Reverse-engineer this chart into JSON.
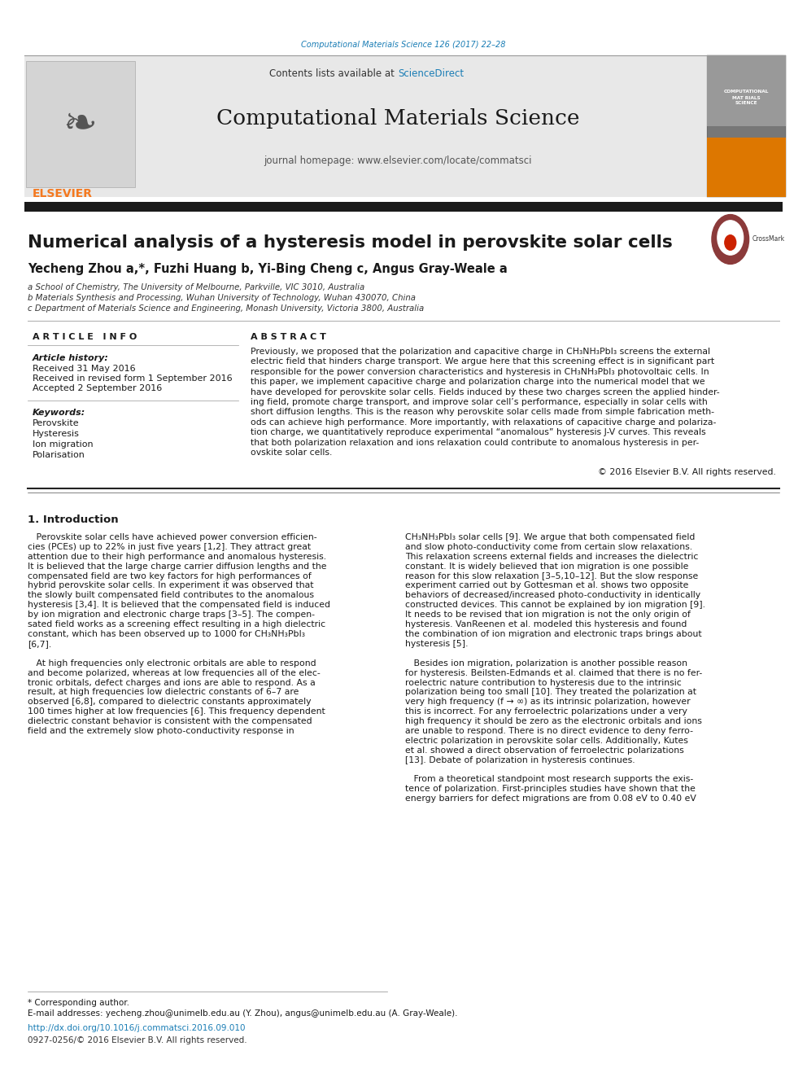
{
  "fig_width": 9.92,
  "fig_height": 13.23,
  "bg_color": "#ffffff",
  "top_url_text": "Computational Materials Science 126 (2017) 22–28",
  "top_url_color": "#1a7db5",
  "journal_name": "Computational Materials Science",
  "journal_homepage": "journal homepage: www.elsevier.com/locate/commatsci",
  "contents_text": "Contents lists available at",
  "sciencedirect_text": "ScienceDirect",
  "sciencedirect_color": "#1a7db5",
  "elsevier_color": "#f47920",
  "header_bg": "#e8e8e8",
  "paper_title": "Numerical analysis of a hysteresis model in perovskite solar cells",
  "authors": "Yecheng Zhou a,*, Fuzhi Huang b, Yi-Bing Cheng c, Angus Gray-Weale a",
  "affil_a": "a School of Chemistry, The University of Melbourne, Parkville, VIC 3010, Australia",
  "affil_b": "b Materials Synthesis and Processing, Wuhan University of Technology, Wuhan 430070, China",
  "affil_c": "c Department of Materials Science and Engineering, Monash University, Victoria 3800, Australia",
  "article_info_title": "A R T I C L E   I N F O",
  "article_history_label": "Article history:",
  "received": "Received 31 May 2016",
  "received_revised": "Received in revised form 1 September 2016",
  "accepted": "Accepted 2 September 2016",
  "keywords_label": "Keywords:",
  "keywords": [
    "Perovskite",
    "Hysteresis",
    "Ion migration",
    "Polarisation"
  ],
  "abstract_title": "A B S T R A C T",
  "copyright_text": "© 2016 Elsevier B.V. All rights reserved.",
  "section1_title": "1. Introduction",
  "footnote_star": "* Corresponding author.",
  "footnote_email": "E-mail addresses: yecheng.zhou@unimelb.edu.au (Y. Zhou), angus@unimelb.edu.au (A. Gray-Weale).",
  "doi_text": "http://dx.doi.org/10.1016/j.commatsci.2016.09.010",
  "issn_text": "0927-0256/© 2016 Elsevier B.V. All rights reserved.",
  "separator_color": "#2c2c2c",
  "thick_bar_color": "#1a1a1a",
  "light_separator": "#999999",
  "abstract_lines": [
    "Previously, we proposed that the polarization and capacitive charge in CH₃NH₃PbI₃ screens the external",
    "electric field that hinders charge transport. We argue here that this screening effect is in significant part",
    "responsible for the power conversion characteristics and hysteresis in CH₃NH₃PbI₃ photovoltaic cells. In",
    "this paper, we implement capacitive charge and polarization charge into the numerical model that we",
    "have developed for perovskite solar cells. Fields induced by these two charges screen the applied hinder-",
    "ing field, promote charge transport, and improve solar cell’s performance, especially in solar cells with",
    "short diffusion lengths. This is the reason why perovskite solar cells made from simple fabrication meth-",
    "ods can achieve high performance. More importantly, with relaxations of capacitive charge and polariza-",
    "tion charge, we quantitatively reproduce experimental “anomalous” hysteresis J-V curves. This reveals",
    "that both polarization relaxation and ions relaxation could contribute to anomalous hysteresis in per-",
    "ovskite solar cells."
  ],
  "intro_left_lines": [
    "   Perovskite solar cells have achieved power conversion efficien-",
    "cies (PCEs) up to 22% in just five years [1,2]. They attract great",
    "attention due to their high performance and anomalous hysteresis.",
    "It is believed that the large charge carrier diffusion lengths and the",
    "compensated field are two key factors for high performances of",
    "hybrid perovskite solar cells. In experiment it was observed that",
    "the slowly built compensated field contributes to the anomalous",
    "hysteresis [3,4]. It is believed that the compensated field is induced",
    "by ion migration and electronic charge traps [3–5]. The compen-",
    "sated field works as a screening effect resulting in a high dielectric",
    "constant, which has been observed up to 1000 for CH₃NH₃PbI₃",
    "[6,7].",
    "",
    "   At high frequencies only electronic orbitals are able to respond",
    "and become polarized, whereas at low frequencies all of the elec-",
    "tronic orbitals, defect charges and ions are able to respond. As a",
    "result, at high frequencies low dielectric constants of 6–7 are",
    "observed [6,8], compared to dielectric constants approximately",
    "100 times higher at low frequencies [6]. This frequency dependent",
    "dielectric constant behavior is consistent with the compensated",
    "field and the extremely slow photo-conductivity response in"
  ],
  "intro_right_lines": [
    "CH₃NH₃PbI₃ solar cells [9]. We argue that both compensated field",
    "and slow photo-conductivity come from certain slow relaxations.",
    "This relaxation screens external fields and increases the dielectric",
    "constant. It is widely believed that ion migration is one possible",
    "reason for this slow relaxation [3–5,10–12]. But the slow response",
    "experiment carried out by Gottesman et al. shows two opposite",
    "behaviors of decreased/increased photo-conductivity in identically",
    "constructed devices. This cannot be explained by ion migration [9].",
    "It needs to be revised that ion migration is not the only origin of",
    "hysteresis. VanReenen et al. modeled this hysteresis and found",
    "the combination of ion migration and electronic traps brings about",
    "hysteresis [5].",
    "",
    "   Besides ion migration, polarization is another possible reason",
    "for hysteresis. Beilsten-Edmands et al. claimed that there is no fer-",
    "roelectric nature contribution to hysteresis due to the intrinsic",
    "polarization being too small [10]. They treated the polarization at",
    "very high frequency (f → ∞) as its intrinsic polarization, however",
    "this is incorrect. For any ferroelectric polarizations under a very",
    "high frequency it should be zero as the electronic orbitals and ions",
    "are unable to respond. There is no direct evidence to deny ferro-",
    "electric polarization in perovskite solar cells. Additionally, Kutes",
    "et al. showed a direct observation of ferroelectric polarizations",
    "[13]. Debate of polarization in hysteresis continues.",
    "",
    "   From a theoretical standpoint most research supports the exis-",
    "tence of polarization. First-principles studies have shown that the",
    "energy barriers for defect migrations are from 0.08 eV to 0.40 eV"
  ]
}
